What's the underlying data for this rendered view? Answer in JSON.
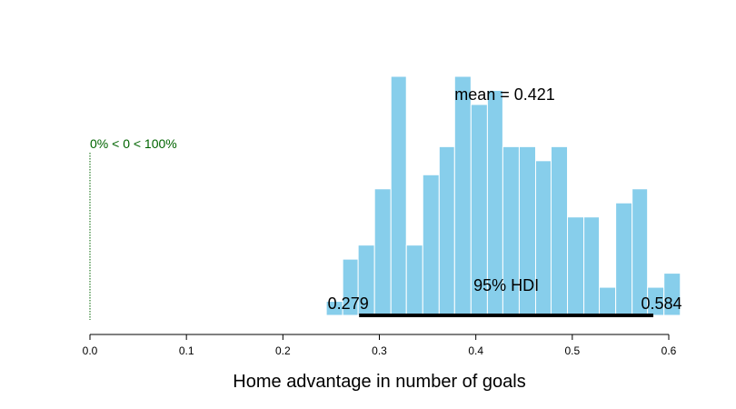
{
  "chart_data": {
    "type": "bar",
    "xlabel": "Home advantage in number of goals",
    "xlim": [
      0.0,
      0.6
    ],
    "x_ticks": [
      "0.0",
      "0.1",
      "0.2",
      "0.3",
      "0.4",
      "0.5",
      "0.6"
    ],
    "bin_width": 0.01667,
    "bins": [
      {
        "x0": 0.245,
        "x1": 0.262,
        "count": 1
      },
      {
        "x0": 0.262,
        "x1": 0.278,
        "count": 4
      },
      {
        "x0": 0.278,
        "x1": 0.295,
        "count": 5
      },
      {
        "x0": 0.295,
        "x1": 0.312,
        "count": 9
      },
      {
        "x0": 0.312,
        "x1": 0.328,
        "count": 17
      },
      {
        "x0": 0.328,
        "x1": 0.345,
        "count": 5
      },
      {
        "x0": 0.345,
        "x1": 0.362,
        "count": 10
      },
      {
        "x0": 0.362,
        "x1": 0.378,
        "count": 12
      },
      {
        "x0": 0.378,
        "x1": 0.395,
        "count": 17
      },
      {
        "x0": 0.395,
        "x1": 0.412,
        "count": 15
      },
      {
        "x0": 0.412,
        "x1": 0.428,
        "count": 16
      },
      {
        "x0": 0.428,
        "x1": 0.445,
        "count": 12
      },
      {
        "x0": 0.445,
        "x1": 0.462,
        "count": 12
      },
      {
        "x0": 0.462,
        "x1": 0.478,
        "count": 11
      },
      {
        "x0": 0.478,
        "x1": 0.495,
        "count": 12
      },
      {
        "x0": 0.495,
        "x1": 0.512,
        "count": 7
      },
      {
        "x0": 0.512,
        "x1": 0.528,
        "count": 7
      },
      {
        "x0": 0.528,
        "x1": 0.545,
        "count": 2
      },
      {
        "x0": 0.545,
        "x1": 0.562,
        "count": 8
      },
      {
        "x0": 0.562,
        "x1": 0.578,
        "count": 9
      },
      {
        "x0": 0.578,
        "x1": 0.595,
        "count": 2
      },
      {
        "x0": 0.595,
        "x1": 0.612,
        "count": 3
      }
    ],
    "ylim": [
      0,
      17
    ],
    "bar_color": "#87CEEB",
    "bar_edge_color": "#FFFFFF",
    "mean_label": "mean = 0.421",
    "comparison": {
      "value": 0.0,
      "label": "0% < 0 < 100%",
      "color": "#006400"
    },
    "hdi": {
      "low": 0.279,
      "high": 0.584,
      "low_label": "0.279",
      "high_label": "0.584",
      "label": "95% HDI"
    },
    "grid": false,
    "legend": "none"
  }
}
